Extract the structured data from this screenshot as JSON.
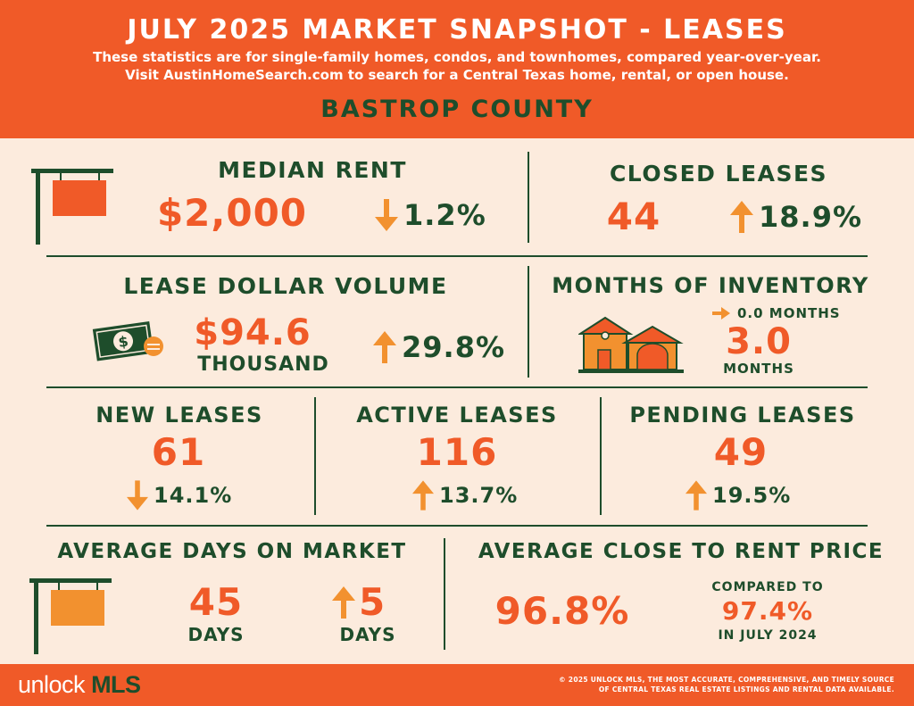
{
  "header": {
    "title": "JULY 2025 MARKET SNAPSHOT - LEASES",
    "subtitle_line1": "These statistics are for single-family homes, condos, and townhomes, compared year-over-year.",
    "subtitle_line2": "Visit AustinHomeSearch.com to search for a Central Texas home, rental, or open house.",
    "county": "BASTROP COUNTY"
  },
  "median_rent": {
    "label": "MEDIAN RENT",
    "value": "$2,000",
    "change": "1.2%",
    "direction": "down"
  },
  "closed_leases": {
    "label": "CLOSED LEASES",
    "value": "44",
    "change": "18.9%",
    "direction": "up"
  },
  "lease_dollar_volume": {
    "label": "LEASE DOLLAR VOLUME",
    "value": "$94.6",
    "unit": "THOUSAND",
    "change": "29.8%",
    "direction": "up"
  },
  "months_of_inventory": {
    "label": "MONTHS OF INVENTORY",
    "change": "0.0 MONTHS",
    "direction": "flat",
    "value": "3.0",
    "unit": "MONTHS"
  },
  "new_leases": {
    "label": "NEW LEASES",
    "value": "61",
    "change": "14.1%",
    "direction": "down"
  },
  "active_leases": {
    "label": "ACTIVE LEASES",
    "value": "116",
    "change": "13.7%",
    "direction": "up"
  },
  "pending_leases": {
    "label": "PENDING LEASES",
    "value": "49",
    "change": "19.5%",
    "direction": "up"
  },
  "avg_days_on_market": {
    "label": "AVERAGE DAYS ON MARKET",
    "value": "45",
    "unit": "DAYS",
    "change": "5",
    "change_unit": "DAYS",
    "direction": "up"
  },
  "avg_close_to_rent": {
    "label": "AVERAGE CLOSE TO RENT PRICE",
    "value": "96.8%",
    "compare_label": "COMPARED TO",
    "compare_value": "97.4%",
    "compare_period": "IN JULY 2024"
  },
  "footer": {
    "logo_a": "unlock",
    "logo_b": "MLS",
    "copyright_line1": "© 2025 UNLOCK MLS, THE MOST ACCURATE, COMPREHENSIVE, AND TIMELY SOURCE",
    "copyright_line2": "OF CENTRAL TEXAS REAL ESTATE LISTINGS AND RENTAL DATA AVAILABLE."
  },
  "colors": {
    "accent": "#F05A28",
    "dark_green": "#1E4D2B",
    "background": "#FCEBDD",
    "arrow": "#F2912F"
  }
}
